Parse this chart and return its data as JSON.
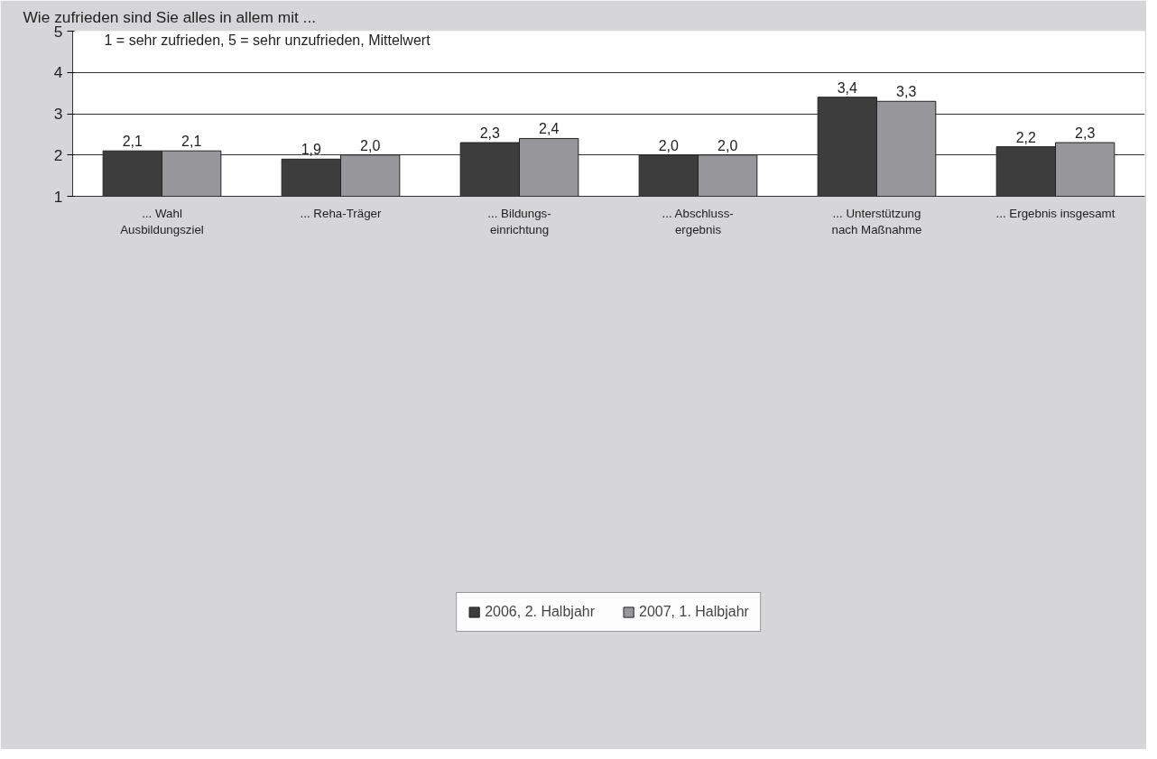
{
  "chart_data": {
    "type": "bar",
    "title": "Wie zufrieden sind Sie alles in allem mit ...",
    "annotations": [
      "1 = sehr zufrieden, 5 = sehr unzufrieden, Mittelwert"
    ],
    "categories": [
      "... Wahl\nAusbildungsziel",
      "... Reha-Träger",
      "... Bildungs-\neinrichtung",
      "... Abschluss-\nergebnis",
      "... Unterstützung\nnach Maßnahme",
      "... Ergebnis insgesamt"
    ],
    "series": [
      {
        "name": "2006, 2. Halbjahr",
        "color": "#3d3d3d",
        "values": [
          2.1,
          1.9,
          2.3,
          2.0,
          3.4,
          2.2
        ],
        "value_labels": [
          "2,1",
          "1,9",
          "2,3",
          "2,0",
          "3,4",
          "2,2"
        ]
      },
      {
        "name": "2007, 1. Halbjahr",
        "color": "#97979b",
        "values": [
          2.1,
          2.0,
          2.4,
          2.0,
          3.3,
          2.3
        ],
        "value_labels": [
          "2,1",
          "2,0",
          "2,4",
          "2,0",
          "3,3",
          "2,3"
        ]
      }
    ],
    "ylim": [
      1,
      5
    ],
    "yticks": [
      1,
      2,
      3,
      4,
      5
    ],
    "grid": "y",
    "legend": "bottom"
  }
}
